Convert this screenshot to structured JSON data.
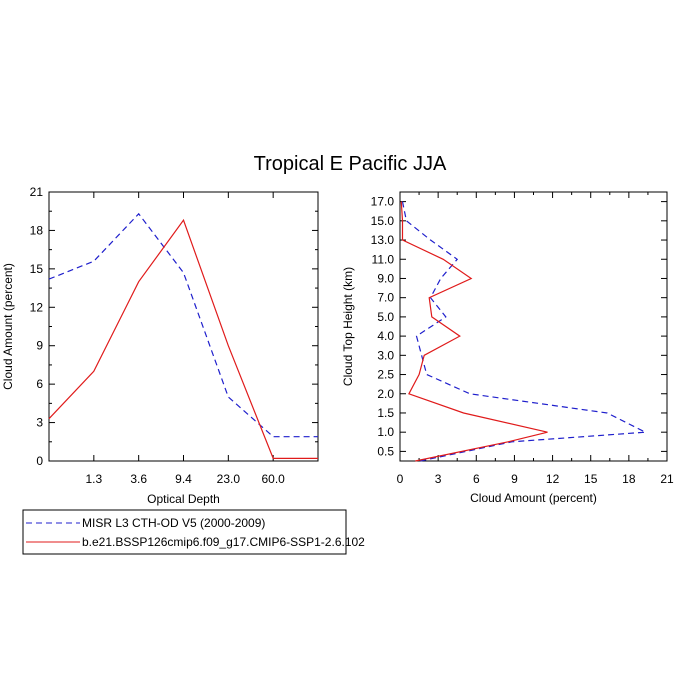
{
  "title": "Tropical E Pacific JJA",
  "colors": {
    "obs": "#1f1fcc",
    "model": "#e01b1b"
  },
  "legend": [
    {
      "label": "MISR L3 CTH-OD V5 (2000-2009)",
      "style": "dashed",
      "color": "#1f1fcc"
    },
    {
      "label": "b.e21.BSSP126cmip6.f09_g17.CMIP6-SSP1-2.6.102",
      "style": "solid",
      "color": "#e01b1b"
    }
  ],
  "chart_data": [
    {
      "type": "line",
      "xlabel": "Optical Depth",
      "ylabel": "Cloud Amount (percent)",
      "ylim": [
        0,
        21
      ],
      "yticks": [
        "0",
        "3",
        "6",
        "9",
        "12",
        "15",
        "18",
        "21"
      ],
      "xticks": [
        "1.3",
        "3.6",
        "9.4",
        "23.0",
        "60.0"
      ],
      "x_index_range": [
        0,
        6
      ],
      "series": [
        {
          "name": "MISR L3 CTH-OD V5 (2000-2009)",
          "x": [
            0,
            1,
            2,
            3,
            4,
            5,
            6
          ],
          "values": [
            14.2,
            15.6,
            19.3,
            14.7,
            5.0,
            1.9,
            1.9
          ]
        },
        {
          "name": "b.e21.BSSP126cmip6.f09_g17.CMIP6-SSP1-2.6.102",
          "x": [
            0,
            1,
            2,
            3,
            4,
            5,
            6
          ],
          "values": [
            3.3,
            7.0,
            14.0,
            18.8,
            9.0,
            0.2,
            0.2
          ]
        }
      ]
    },
    {
      "type": "line",
      "xlabel": "Cloud Amount (percent)",
      "ylabel": "Cloud Top Height (km)",
      "xlim": [
        0,
        21
      ],
      "xticks": [
        "0",
        "3",
        "6",
        "9",
        "12",
        "15",
        "18",
        "21"
      ],
      "yticks": [
        "0.5",
        "1.0",
        "1.5",
        "2.0",
        "2.5",
        "3.0",
        "4.0",
        "5.0",
        "7.0",
        "9.0",
        "11.0",
        "13.0",
        "15.0",
        "17.0"
      ],
      "y_index_range": [
        -0.5,
        13.5
      ],
      "series": [
        {
          "name": "MISR L3 CTH-OD V5 (2000-2009)",
          "y": [
            -0.5,
            0.5,
            1,
            2,
            3,
            4,
            5,
            6,
            7,
            8,
            9,
            10,
            11,
            12,
            13
          ],
          "values": [
            1.6,
            8.8,
            19.3,
            16.3,
            5.5,
            2.1,
            1.7,
            1.3,
            3.6,
            2.4,
            3.2,
            4.5,
            2.4,
            0.5,
            0.2
          ]
        },
        {
          "name": "b.e21.BSSP126cmip6.f09_g17.CMIP6-SSP1-2.6.102",
          "y": [
            -0.5,
            0.5,
            1,
            2,
            3,
            4,
            5,
            6,
            7,
            8,
            9,
            10,
            11,
            12,
            13
          ],
          "values": [
            1.2,
            8.5,
            11.6,
            5.0,
            0.7,
            1.5,
            1.9,
            4.7,
            2.5,
            2.3,
            5.6,
            3.4,
            0.2,
            0.2,
            0.1
          ]
        }
      ]
    }
  ]
}
